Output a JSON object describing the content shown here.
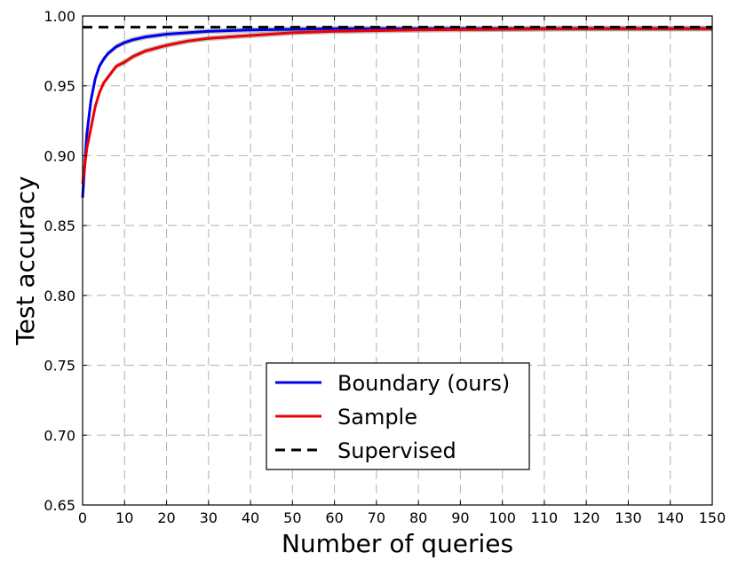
{
  "chart_data": {
    "type": "line",
    "title": "",
    "xlabel": "Number of queries",
    "ylabel": "Test accuracy",
    "xlim": [
      0,
      150
    ],
    "ylim": [
      0.65,
      1.0
    ],
    "xticks": [
      0,
      10,
      20,
      30,
      40,
      50,
      60,
      70,
      80,
      90,
      100,
      110,
      120,
      130,
      140,
      150
    ],
    "yticks": [
      0.65,
      0.7,
      0.75,
      0.8,
      0.85,
      0.9,
      0.95,
      1.0
    ],
    "xtick_labels": [
      "0",
      "10",
      "20",
      "30",
      "40",
      "50",
      "60",
      "70",
      "80",
      "90",
      "100",
      "110",
      "120",
      "130",
      "140",
      "150"
    ],
    "ytick_labels": [
      "0.65",
      "0.70",
      "0.75",
      "0.80",
      "0.85",
      "0.90",
      "0.95",
      "1.00"
    ],
    "grid": true,
    "legend_position": "lower center",
    "series": [
      {
        "name": "Boundary (ours)",
        "color": "#0000ee",
        "style": "solid",
        "band": true,
        "x": [
          0,
          1,
          2,
          3,
          4,
          5,
          6,
          8,
          10,
          12,
          15,
          20,
          25,
          30,
          40,
          50,
          60,
          80,
          100,
          120,
          150
        ],
        "y": [
          0.87,
          0.915,
          0.94,
          0.955,
          0.964,
          0.969,
          0.973,
          0.978,
          0.981,
          0.983,
          0.985,
          0.987,
          0.988,
          0.989,
          0.99,
          0.9905,
          0.991,
          0.991,
          0.991,
          0.991,
          0.991
        ]
      },
      {
        "name": "Sample",
        "color": "#ee0000",
        "style": "solid",
        "band": true,
        "x": [
          0,
          1,
          2,
          3,
          4,
          5,
          6,
          7,
          8,
          10,
          12,
          15,
          20,
          25,
          30,
          40,
          50,
          60,
          80,
          100,
          120,
          150
        ],
        "y": [
          0.88,
          0.905,
          0.92,
          0.935,
          0.945,
          0.952,
          0.956,
          0.96,
          0.964,
          0.967,
          0.971,
          0.975,
          0.979,
          0.982,
          0.984,
          0.986,
          0.988,
          0.989,
          0.99,
          0.9905,
          0.991,
          0.991
        ]
      },
      {
        "name": "Supervised",
        "color": "#000000",
        "style": "dashed",
        "band": false,
        "x": [
          0,
          150
        ],
        "y": [
          0.992,
          0.992
        ]
      }
    ]
  }
}
